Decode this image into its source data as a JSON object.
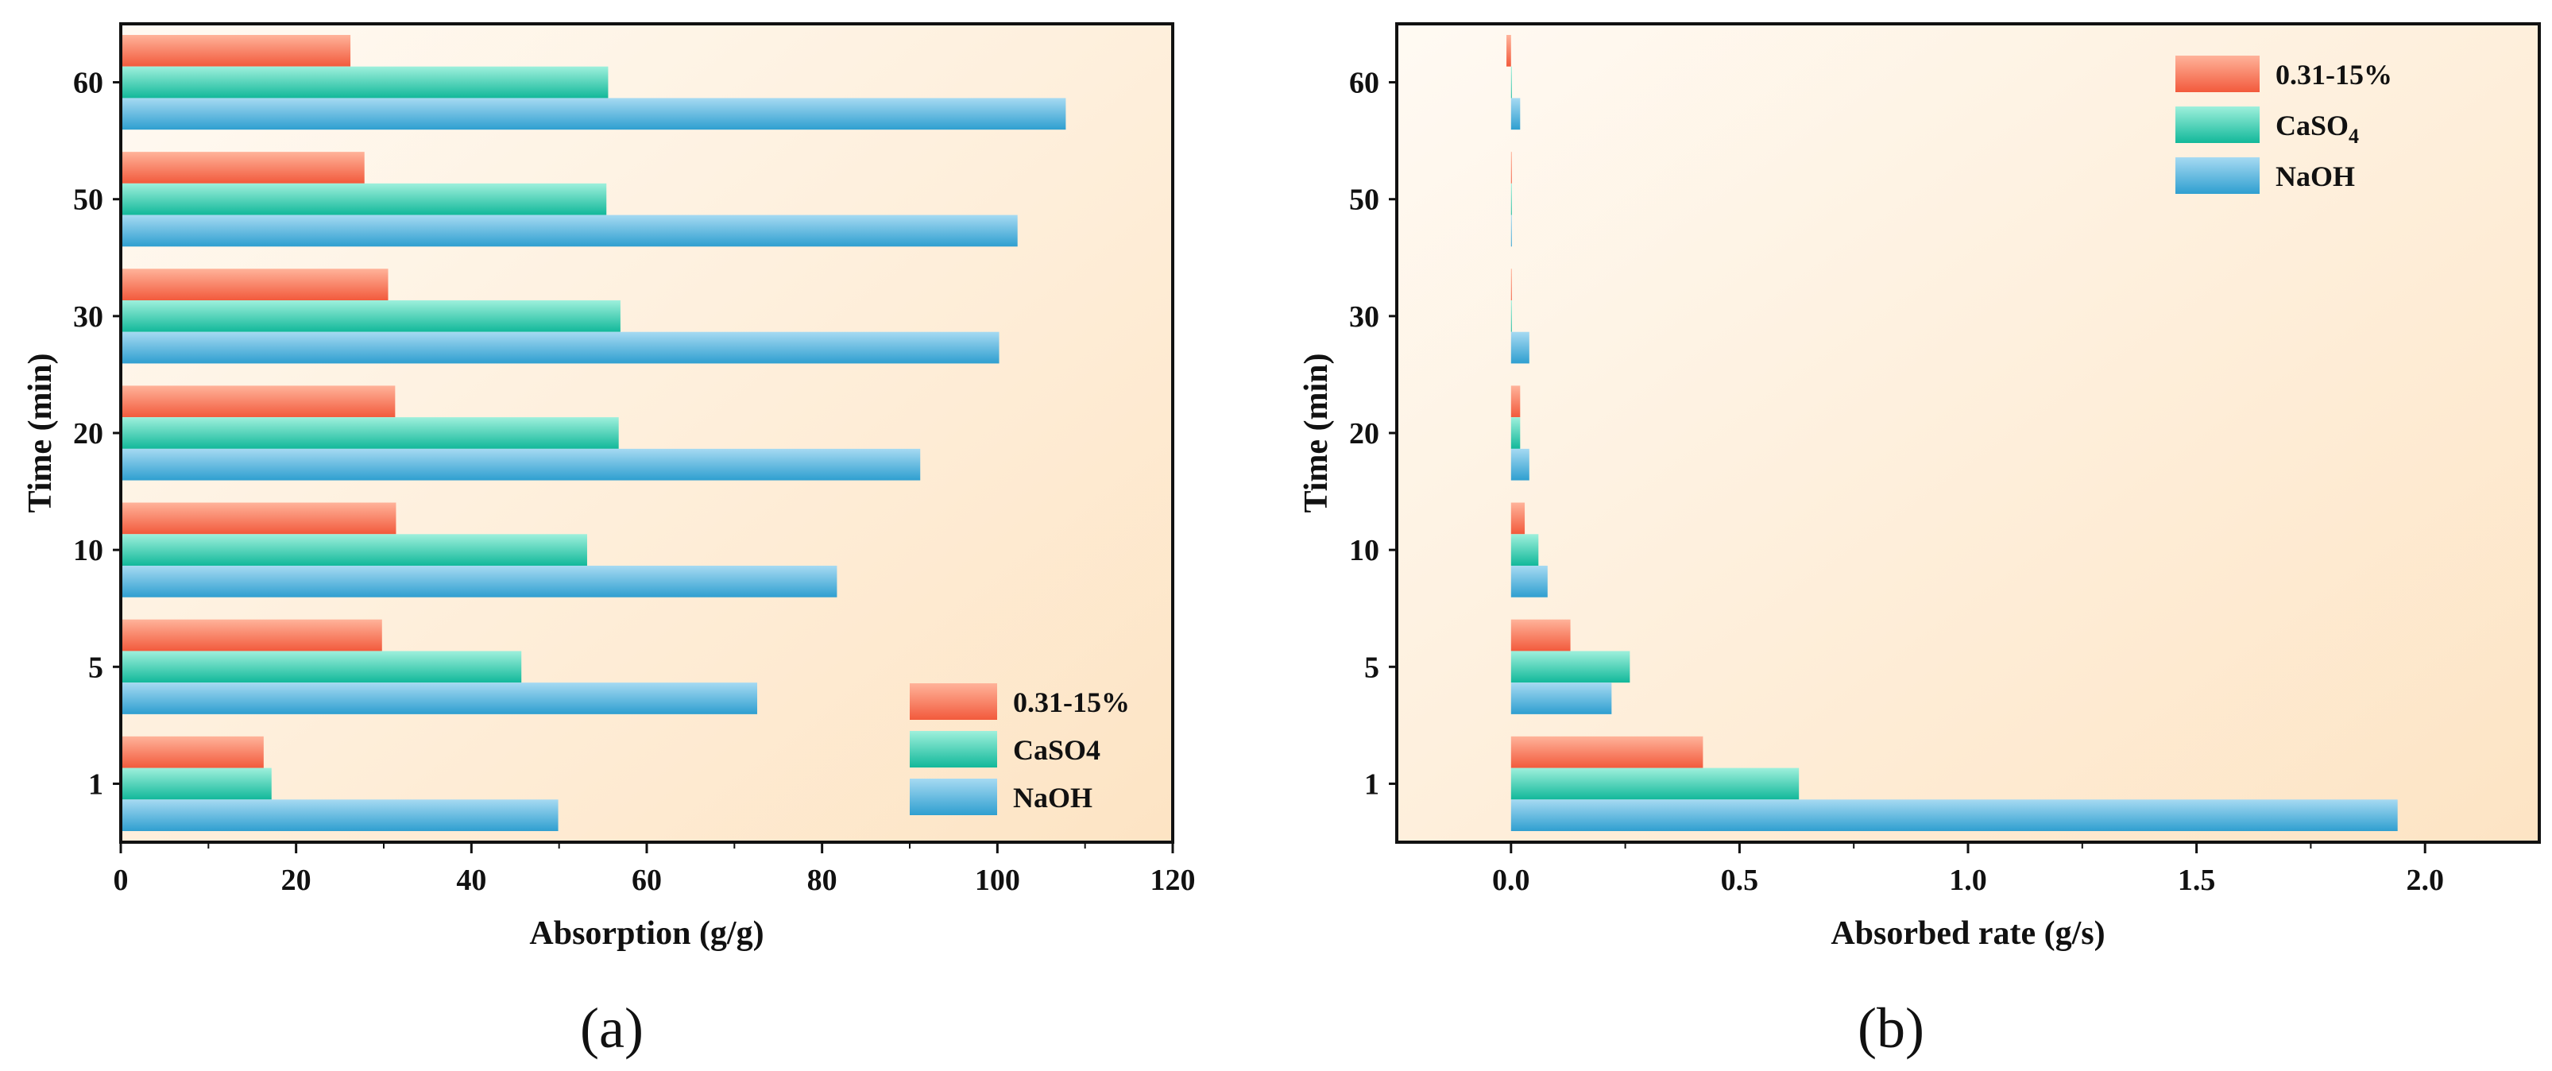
{
  "colors": {
    "series": [
      "#f25a3c",
      "#12b89a",
      "#2f9fd0"
    ],
    "series_light": [
      "#ffb39a",
      "#9ef0dc",
      "#a6daf2"
    ],
    "bg_light": "#fffaf3",
    "bg_dark": "#fde4c4",
    "axis": "#111111"
  },
  "chart_data": [
    {
      "panel": "(a)",
      "type": "bar",
      "orientation": "horizontal",
      "categories": [
        "1",
        "5",
        "10",
        "20",
        "30",
        "50",
        "60"
      ],
      "series": [
        {
          "name": "0.31-15%",
          "values": [
            16.3,
            29.8,
            31.4,
            31.3,
            30.5,
            27.8,
            26.2
          ]
        },
        {
          "name": "CaSO4",
          "values": [
            17.2,
            45.7,
            53.2,
            56.8,
            57.0,
            55.4,
            55.6
          ]
        },
        {
          "name": "NaOH",
          "values": [
            49.9,
            72.6,
            81.7,
            91.2,
            100.2,
            102.3,
            107.8
          ]
        }
      ],
      "xlabel": "Absorption (g/g)",
      "ylabel": "Time (min)",
      "xlim": [
        0,
        120
      ],
      "xticks": [
        "0",
        "20",
        "40",
        "60",
        "80",
        "100",
        "120"
      ],
      "legend_position": "bottom-right"
    },
    {
      "panel": "(b)",
      "type": "bar",
      "orientation": "horizontal",
      "categories": [
        "1",
        "5",
        "10",
        "20",
        "30",
        "50",
        "60"
      ],
      "series": [
        {
          "name": "0.31-15%",
          "values": [
            0.42,
            0.13,
            0.03,
            0.02,
            0.0,
            0.0,
            -0.01
          ]
        },
        {
          "name": "CaSO<sub>4</sub>",
          "values": [
            0.63,
            0.26,
            0.06,
            0.02,
            0.0,
            0.0,
            0.0
          ]
        },
        {
          "name": "NaOH",
          "values": [
            1.94,
            0.22,
            0.08,
            0.04,
            0.04,
            0.0,
            0.02
          ]
        }
      ],
      "legend_labels": [
        "0.31-15%",
        "CaSO",
        "NaOH"
      ],
      "legend_subscript": [
        "",
        "4",
        ""
      ],
      "xlabel": "Absorbed rate (g/s)",
      "ylabel": "Time (min)",
      "xlim": [
        -0.25,
        2.25
      ],
      "xticks_values": [
        0.0,
        0.5,
        1.0,
        1.5,
        2.0
      ],
      "xticks": [
        "0.0",
        "0.5",
        "1.0",
        "1.5",
        "2.0"
      ],
      "legend_position": "top-right"
    }
  ]
}
